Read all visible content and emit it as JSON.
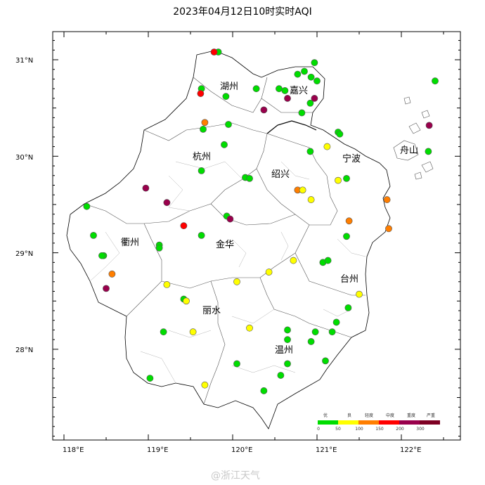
{
  "title": "2023年04月12日10时实时AQI",
  "watermark": "@浙江天气",
  "axes": {
    "lat_labels": [
      "31°N",
      "30°N",
      "29°N",
      "28°N"
    ],
    "lon_labels": [
      "118°E",
      "119°E",
      "120°E",
      "121°E",
      "122°E"
    ]
  },
  "cities": [
    "湖州",
    "嘉兴",
    "杭州",
    "宁波",
    "舟山",
    "绍兴",
    "衢州",
    "金华",
    "台州",
    "丽水",
    "温州"
  ],
  "legend": {
    "categories": [
      "优",
      "良",
      "轻度",
      "中度",
      "重度",
      "严重"
    ],
    "thresholds": [
      "0",
      "50",
      "100",
      "150",
      "200",
      "300"
    ],
    "colors": [
      "#00dd00",
      "#ffff00",
      "#ff7e00",
      "#ff0000",
      "#99004c",
      "#7e0023"
    ]
  },
  "stations": [
    {
      "lon": 119.83,
      "lat": 31.08,
      "level": "优"
    },
    {
      "lon": 119.78,
      "lat": 31.08,
      "level": "中度"
    },
    {
      "lon": 120.28,
      "lat": 30.7,
      "level": "优"
    },
    {
      "lon": 120.55,
      "lat": 30.7,
      "level": "优"
    },
    {
      "lon": 120.62,
      "lat": 30.68,
      "level": "优"
    },
    {
      "lon": 120.77,
      "lat": 30.85,
      "level": "优"
    },
    {
      "lon": 120.85,
      "lat": 30.88,
      "level": "优"
    },
    {
      "lon": 120.97,
      "lat": 30.97,
      "level": "优"
    },
    {
      "lon": 120.93,
      "lat": 30.82,
      "level": "优"
    },
    {
      "lon": 121.0,
      "lat": 30.78,
      "level": "优"
    },
    {
      "lon": 120.92,
      "lat": 30.55,
      "level": "优"
    },
    {
      "lon": 120.97,
      "lat": 30.6,
      "level": "重度"
    },
    {
      "lon": 120.82,
      "lat": 30.45,
      "level": "优"
    },
    {
      "lon": 120.65,
      "lat": 30.6,
      "level": "重度"
    },
    {
      "lon": 120.37,
      "lat": 30.48,
      "level": "重度"
    },
    {
      "lon": 119.63,
      "lat": 30.7,
      "level": "优"
    },
    {
      "lon": 119.62,
      "lat": 30.65,
      "level": "中度"
    },
    {
      "lon": 119.92,
      "lat": 30.62,
      "level": "优"
    },
    {
      "lon": 119.67,
      "lat": 30.35,
      "level": "轻度"
    },
    {
      "lon": 119.65,
      "lat": 30.28,
      "level": "优"
    },
    {
      "lon": 119.95,
      "lat": 30.33,
      "level": "优"
    },
    {
      "lon": 119.9,
      "lat": 30.12,
      "level": "优"
    },
    {
      "lon": 119.63,
      "lat": 29.85,
      "level": "优"
    },
    {
      "lon": 120.15,
      "lat": 29.78,
      "level": "优"
    },
    {
      "lon": 120.2,
      "lat": 29.77,
      "level": "优"
    },
    {
      "lon": 121.25,
      "lat": 30.25,
      "level": "优"
    },
    {
      "lon": 121.27,
      "lat": 30.23,
      "level": "优"
    },
    {
      "lon": 120.92,
      "lat": 30.05,
      "level": "优"
    },
    {
      "lon": 121.12,
      "lat": 30.1,
      "level": "良"
    },
    {
      "lon": 121.25,
      "lat": 29.75,
      "level": "良"
    },
    {
      "lon": 121.35,
      "lat": 29.77,
      "level": "优"
    },
    {
      "lon": 122.33,
      "lat": 30.32,
      "level": "重度"
    },
    {
      "lon": 122.32,
      "lat": 30.05,
      "level": "优"
    },
    {
      "lon": 122.4,
      "lat": 30.78,
      "level": "优"
    },
    {
      "lon": 120.77,
      "lat": 29.65,
      "level": "轻度"
    },
    {
      "lon": 120.83,
      "lat": 29.65,
      "level": "良"
    },
    {
      "lon": 120.93,
      "lat": 29.55,
      "level": "良"
    },
    {
      "lon": 121.83,
      "lat": 29.55,
      "level": "轻度"
    },
    {
      "lon": 121.38,
      "lat": 29.33,
      "level": "轻度"
    },
    {
      "lon": 121.35,
      "lat": 29.17,
      "level": "优"
    },
    {
      "lon": 121.85,
      "lat": 29.25,
      "level": "轻度"
    },
    {
      "lon": 118.97,
      "lat": 29.67,
      "level": "重度"
    },
    {
      "lon": 119.22,
      "lat": 29.52,
      "level": "重度"
    },
    {
      "lon": 118.27,
      "lat": 29.48,
      "level": "优"
    },
    {
      "lon": 118.35,
      "lat": 29.18,
      "level": "优"
    },
    {
      "lon": 119.42,
      "lat": 29.28,
      "level": "中度"
    },
    {
      "lon": 119.63,
      "lat": 29.18,
      "level": "优"
    },
    {
      "lon": 119.93,
      "lat": 29.38,
      "level": "优"
    },
    {
      "lon": 119.97,
      "lat": 29.35,
      "level": "重度"
    },
    {
      "lon": 119.13,
      "lat": 29.08,
      "level": "优"
    },
    {
      "lon": 119.13,
      "lat": 29.05,
      "level": "优"
    },
    {
      "lon": 118.47,
      "lat": 28.97,
      "level": "优"
    },
    {
      "lon": 118.45,
      "lat": 28.97,
      "level": "优"
    },
    {
      "lon": 118.57,
      "lat": 28.78,
      "level": "轻度"
    },
    {
      "lon": 118.5,
      "lat": 28.63,
      "level": "重度"
    },
    {
      "lon": 119.22,
      "lat": 28.67,
      "level": "良"
    },
    {
      "lon": 119.42,
      "lat": 28.52,
      "level": "优"
    },
    {
      "lon": 119.45,
      "lat": 28.5,
      "level": "良"
    },
    {
      "lon": 120.05,
      "lat": 28.7,
      "level": "良"
    },
    {
      "lon": 120.43,
      "lat": 28.8,
      "level": "良"
    },
    {
      "lon": 120.72,
      "lat": 28.92,
      "level": "良"
    },
    {
      "lon": 121.07,
      "lat": 28.9,
      "level": "优"
    },
    {
      "lon": 121.13,
      "lat": 28.92,
      "level": "优"
    },
    {
      "lon": 121.5,
      "lat": 28.57,
      "level": "良"
    },
    {
      "lon": 121.37,
      "lat": 28.43,
      "level": "优"
    },
    {
      "lon": 121.23,
      "lat": 28.28,
      "level": "优"
    },
    {
      "lon": 121.18,
      "lat": 28.18,
      "level": "优"
    },
    {
      "lon": 120.98,
      "lat": 28.18,
      "level": "优"
    },
    {
      "lon": 120.93,
      "lat": 28.08,
      "level": "优"
    },
    {
      "lon": 120.65,
      "lat": 28.2,
      "level": "优"
    },
    {
      "lon": 120.65,
      "lat": 28.1,
      "level": "优"
    },
    {
      "lon": 120.2,
      "lat": 28.22,
      "level": "良"
    },
    {
      "lon": 119.18,
      "lat": 28.18,
      "level": "优"
    },
    {
      "lon": 119.53,
      "lat": 28.18,
      "level": "良"
    },
    {
      "lon": 120.05,
      "lat": 27.85,
      "level": "优"
    },
    {
      "lon": 120.65,
      "lat": 27.85,
      "level": "优"
    },
    {
      "lon": 120.57,
      "lat": 27.73,
      "level": "优"
    },
    {
      "lon": 121.1,
      "lat": 27.88,
      "level": "优"
    },
    {
      "lon": 119.02,
      "lat": 27.7,
      "level": "优"
    },
    {
      "lon": 119.67,
      "lat": 27.63,
      "level": "良"
    },
    {
      "lon": 120.37,
      "lat": 27.57,
      "level": "优"
    }
  ]
}
